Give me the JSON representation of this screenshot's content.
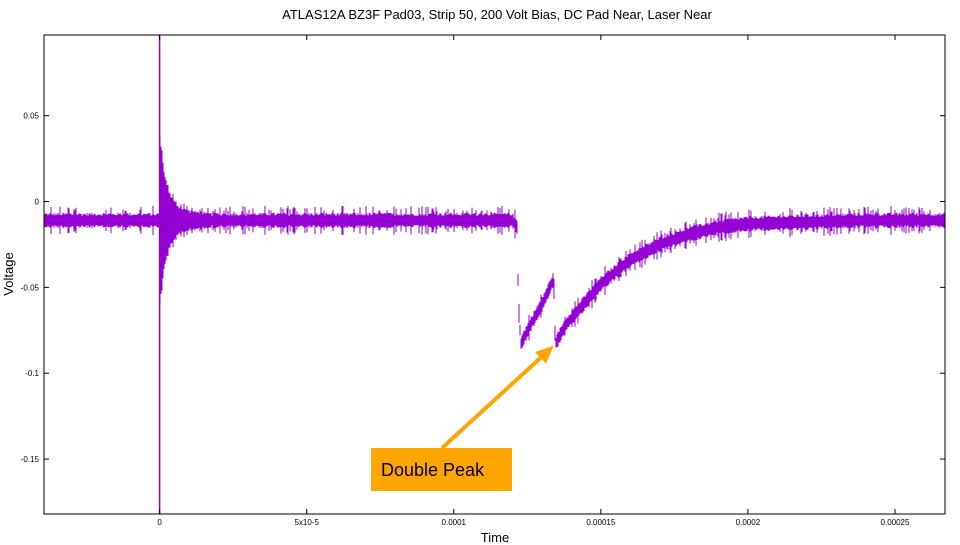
{
  "chart_data": {
    "type": "line",
    "title": "ATLAS12A BZ3F Pad03, Strip 50, 200 Volt Bias, DC Pad Near, Laser Near",
    "xlabel": "Time",
    "ylabel": "Voltage",
    "xlim": [
      -3.93e-05,
      0.000267
    ],
    "ylim": [
      -0.182,
      0.097
    ],
    "x_ticks": [
      {
        "value": 0,
        "label": "0"
      },
      {
        "value": 5e-05,
        "label": "5x10-5"
      },
      {
        "value": 0.0001,
        "label": "0.0001"
      },
      {
        "value": 0.00015,
        "label": "0.00015"
      },
      {
        "value": 0.0002,
        "label": "0.0002"
      },
      {
        "value": 0.00025,
        "label": "0.00025"
      }
    ],
    "y_ticks": [
      {
        "value": 0.05,
        "label": "0.05"
      },
      {
        "value": 0,
        "label": "0"
      },
      {
        "value": -0.05,
        "label": "-0.05"
      },
      {
        "value": -0.1,
        "label": "-0.1"
      },
      {
        "value": -0.15,
        "label": "-0.15"
      }
    ],
    "grid": false,
    "series": [
      {
        "color": "#9400d3",
        "points": [
          [
            -3.93e-05,
            -0.011
          ],
          [
            0.0,
            -0.011
          ],
          [
            2e-06,
            -0.011
          ],
          [
            6e-06,
            -0.011
          ],
          [
            0.00012,
            -0.011
          ],
          [
            0.0001215,
            -0.015
          ],
          [
            0.000122,
            -0.06
          ],
          [
            0.0001228,
            -0.083
          ],
          [
            0.000126,
            -0.072
          ],
          [
            0.00013,
            -0.06
          ],
          [
            0.000134,
            -0.045
          ],
          [
            0.0001345,
            -0.083
          ],
          [
            0.000138,
            -0.072
          ],
          [
            0.000145,
            -0.058
          ],
          [
            0.00015,
            -0.048
          ],
          [
            0.00016,
            -0.034
          ],
          [
            0.00017,
            -0.025
          ],
          [
            0.00018,
            -0.019
          ],
          [
            0.00019,
            -0.015
          ],
          [
            0.0002,
            -0.013
          ],
          [
            0.00022,
            -0.012
          ],
          [
            0.00024,
            -0.011
          ],
          [
            0.000267,
            -0.011
          ]
        ],
        "spike_min": [
          0.0,
          -0.182
        ],
        "spike_max": [
          0.0,
          0.097
        ]
      }
    ],
    "annotations": [
      {
        "text": "Double Peak",
        "box_color": "#ffa500",
        "arrow_color": "#ffa500",
        "arrow_to": [
          0.000134,
          -0.084
        ]
      }
    ]
  }
}
